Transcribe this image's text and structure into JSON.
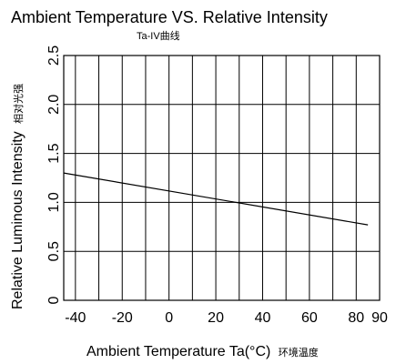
{
  "chart_data": {
    "type": "line",
    "title": "Ambient Temperature VS. Relative Intensity",
    "subtitle": "Ta-IV曲线",
    "xlabel": "Ambient Temperature Ta(°C)",
    "xlabel_cjk": "环境温度",
    "ylabel": "Relative Luminous Intensity",
    "ylabel_cjk": "相对光强",
    "xlim": [
      -45,
      90
    ],
    "ylim": [
      0,
      2.5
    ],
    "x_ticks": [
      -40,
      -20,
      0,
      20,
      40,
      60,
      80,
      90
    ],
    "x_tick_labels": [
      "-40",
      "-20",
      "0",
      "20",
      "40",
      "60",
      "80",
      "90"
    ],
    "y_ticks": [
      0,
      0.5,
      1.0,
      1.5,
      2.0,
      2.5
    ],
    "y_tick_labels": [
      "0",
      "0.5",
      "1.0",
      "1.5",
      "2.0",
      "2.5"
    ],
    "x_grid_step": 10,
    "grid": true,
    "series": [
      {
        "x": [
          -45,
          85
        ],
        "y": [
          1.3,
          0.77
        ]
      }
    ],
    "line_color": "#000000",
    "grid_color": "#000000"
  }
}
